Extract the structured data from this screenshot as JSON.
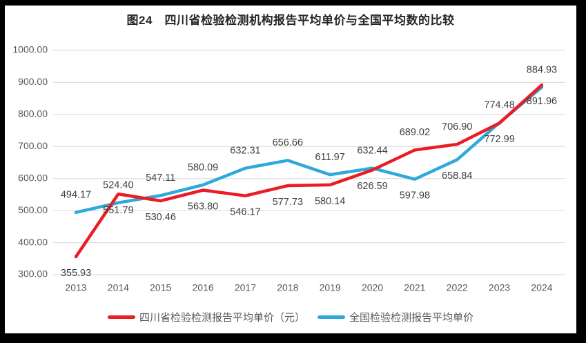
{
  "title": "图24　四川省检验检测机构报告平均单价与全国平均数的比较",
  "chart_data": {
    "type": "line",
    "x": [
      "2013",
      "2014",
      "2015",
      "2016",
      "2017",
      "2018",
      "2019",
      "2020",
      "2021",
      "2022",
      "2023",
      "2024"
    ],
    "series": [
      {
        "name": "四川省检验检测报告平均单价（元）",
        "color": "#EC1C24",
        "values": [
          355.93,
          551.79,
          530.46,
          563.8,
          546.17,
          577.73,
          580.14,
          626.59,
          689.02,
          706.9,
          772.99,
          891.96
        ]
      },
      {
        "name": "全国检验检测报告平均单价",
        "color": "#2FA9DC",
        "values": [
          494.17,
          524.4,
          547.11,
          580.09,
          632.31,
          656.66,
          611.97,
          632.44,
          597.98,
          658.84,
          774.48,
          884.93
        ]
      }
    ],
    "ylim": [
      300,
      1000
    ],
    "y_ticks": [
      300,
      400,
      500,
      600,
      700,
      800,
      900,
      1000
    ],
    "y_tick_labels": [
      "300.00",
      "400.00",
      "500.00",
      "600.00",
      "700.00",
      "800.00",
      "900.00",
      "1000.00"
    ],
    "x_tick_labels": [
      "2013",
      "2014",
      "2015",
      "2016",
      "2017",
      "2018",
      "2019",
      "2020",
      "2021",
      "2022",
      "2023",
      "2024"
    ],
    "data_labels": true,
    "grid": true,
    "legend_position": "bottom",
    "colors": {
      "grid": "#D9D9D9",
      "tick_text": "#595959",
      "data_label_text": "#404040",
      "title_text": "#262626",
      "frame": "#000000",
      "background": "#FFFFFF"
    }
  }
}
